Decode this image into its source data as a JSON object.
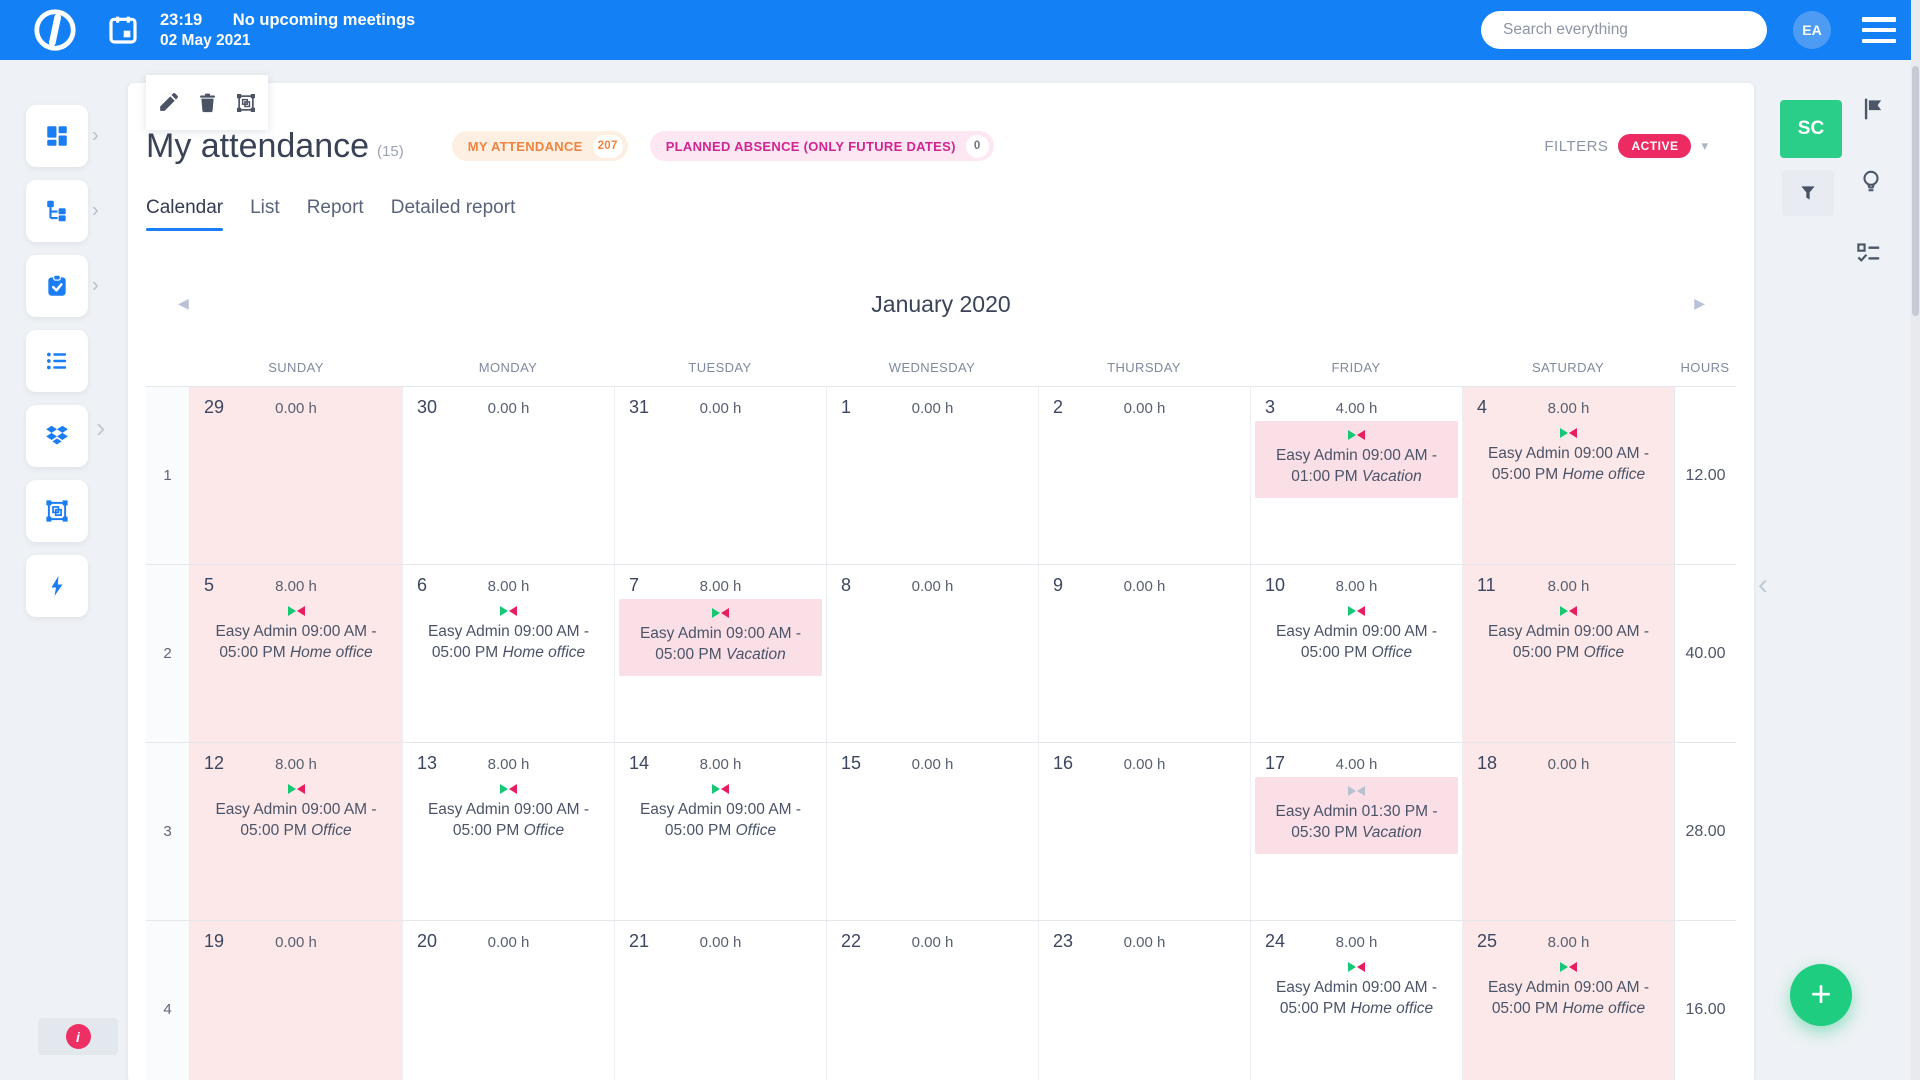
{
  "topbar": {
    "time": "23:19",
    "meeting_status": "No upcoming meetings",
    "date": "02 May 2021",
    "search_placeholder": "Search everything",
    "avatar_initials": "EA"
  },
  "icons": {
    "submenu_chevron": "›",
    "expand_sidebar": "›",
    "collapse_panel": "‹",
    "dropdown_caret": "▾",
    "nav_prev": "◀",
    "nav_next": "▶",
    "info": "i"
  },
  "sidebar": {
    "items": [
      {
        "icon": "dashboard-grid-icon",
        "has_submenu": true
      },
      {
        "icon": "project-tree-icon",
        "has_submenu": true
      },
      {
        "icon": "task-clipboard-icon",
        "has_submenu": true
      },
      {
        "icon": "list-icon",
        "has_submenu": false
      },
      {
        "icon": "dropbox-icon",
        "has_submenu": false
      },
      {
        "icon": "frame-objects-icon",
        "has_submenu": false
      },
      {
        "icon": "lightning-icon",
        "has_submenu": false
      }
    ]
  },
  "toolbar": {
    "buttons": [
      {
        "icon": "edit-pencil-icon"
      },
      {
        "icon": "delete-trash-icon"
      },
      {
        "icon": "frame-objects-icon"
      }
    ]
  },
  "header": {
    "title": "My attendance",
    "count": "(15)",
    "badges": [
      {
        "label": "MY ATTENDANCE",
        "count": "207",
        "theme": "orange"
      },
      {
        "label": "PLANNED ABSENCE (ONLY FUTURE DATES)",
        "count": "0",
        "theme": "pink"
      }
    ],
    "filters": {
      "label": "FILTERS",
      "state": "ACTIVE"
    }
  },
  "tabs": {
    "items": [
      {
        "label": "Calendar",
        "active": true
      },
      {
        "label": "List",
        "active": false
      },
      {
        "label": "Report",
        "active": false
      },
      {
        "label": "Detailed report",
        "active": false
      }
    ]
  },
  "calendar": {
    "month_title": "January 2020",
    "weekdays": [
      "SUNDAY",
      "MONDAY",
      "TUESDAY",
      "WEDNESDAY",
      "THURSDAY",
      "FRIDAY",
      "SATURDAY"
    ],
    "hours_header": "HOURS",
    "weeks": [
      {
        "week_number": "1",
        "total_hours": "12.00",
        "days": [
          {
            "day": "29",
            "hours": "0.00 h",
            "weekend": true
          },
          {
            "day": "30",
            "hours": "0.00 h",
            "weekend": false
          },
          {
            "day": "31",
            "hours": "0.00 h",
            "weekend": false
          },
          {
            "day": "1",
            "hours": "0.00 h",
            "weekend": false
          },
          {
            "day": "2",
            "hours": "0.00 h",
            "weekend": false
          },
          {
            "day": "3",
            "hours": "4.00 h",
            "weekend": false,
            "event": {
              "time": "Easy Admin 09:00 AM - 01:00 PM",
              "type": "Vacation",
              "boxed": true,
              "status": "approved"
            }
          },
          {
            "day": "4",
            "hours": "8.00 h",
            "weekend": true,
            "event": {
              "time": "Easy Admin 09:00 AM - 05:00 PM",
              "type": "Home office",
              "boxed": false,
              "status": "approved"
            }
          }
        ]
      },
      {
        "week_number": "2",
        "total_hours": "40.00",
        "days": [
          {
            "day": "5",
            "hours": "8.00 h",
            "weekend": true,
            "event": {
              "time": "Easy Admin 09:00 AM - 05:00 PM",
              "type": "Home office",
              "boxed": false,
              "status": "approved"
            }
          },
          {
            "day": "6",
            "hours": "8.00 h",
            "weekend": false,
            "event": {
              "time": "Easy Admin 09:00 AM - 05:00 PM",
              "type": "Home office",
              "boxed": false,
              "status": "approved"
            }
          },
          {
            "day": "7",
            "hours": "8.00 h",
            "weekend": false,
            "event": {
              "time": "Easy Admin 09:00 AM - 05:00 PM",
              "type": "Vacation",
              "boxed": true,
              "status": "approved"
            }
          },
          {
            "day": "8",
            "hours": "0.00 h",
            "weekend": false
          },
          {
            "day": "9",
            "hours": "0.00 h",
            "weekend": false
          },
          {
            "day": "10",
            "hours": "8.00 h",
            "weekend": false,
            "event": {
              "time": "Easy Admin 09:00 AM - 05:00 PM",
              "type": "Office",
              "boxed": false,
              "status": "approved"
            }
          },
          {
            "day": "11",
            "hours": "8.00 h",
            "weekend": true,
            "event": {
              "time": "Easy Admin 09:00 AM - 05:00 PM",
              "type": "Office",
              "boxed": false,
              "status": "approved"
            }
          }
        ]
      },
      {
        "week_number": "3",
        "total_hours": "28.00",
        "days": [
          {
            "day": "12",
            "hours": "8.00 h",
            "weekend": true,
            "event": {
              "time": "Easy Admin 09:00 AM - 05:00 PM",
              "type": "Office",
              "boxed": false,
              "status": "approved"
            }
          },
          {
            "day": "13",
            "hours": "8.00 h",
            "weekend": false,
            "event": {
              "time": "Easy Admin 09:00 AM - 05:00 PM",
              "type": "Office",
              "boxed": false,
              "status": "approved"
            }
          },
          {
            "day": "14",
            "hours": "8.00 h",
            "weekend": false,
            "event": {
              "time": "Easy Admin 09:00 AM - 05:00 PM",
              "type": "Office",
              "boxed": false,
              "status": "approved"
            }
          },
          {
            "day": "15",
            "hours": "0.00 h",
            "weekend": false
          },
          {
            "day": "16",
            "hours": "0.00 h",
            "weekend": false
          },
          {
            "day": "17",
            "hours": "4.00 h",
            "weekend": false,
            "event": {
              "time": "Easy Admin 01:30 PM - 05:30 PM",
              "type": "Vacation",
              "boxed": true,
              "status": "pending"
            }
          },
          {
            "day": "18",
            "hours": "0.00 h",
            "weekend": true
          }
        ]
      },
      {
        "week_number": "4",
        "total_hours": "16.00",
        "days": [
          {
            "day": "19",
            "hours": "0.00 h",
            "weekend": true
          },
          {
            "day": "20",
            "hours": "0.00 h",
            "weekend": false
          },
          {
            "day": "21",
            "hours": "0.00 h",
            "weekend": false
          },
          {
            "day": "22",
            "hours": "0.00 h",
            "weekend": false
          },
          {
            "day": "23",
            "hours": "0.00 h",
            "weekend": false
          },
          {
            "day": "24",
            "hours": "8.00 h",
            "weekend": false,
            "event": {
              "time": "Easy Admin 09:00 AM - 05:00 PM",
              "type": "Home office",
              "boxed": false,
              "status": "approved"
            }
          },
          {
            "day": "25",
            "hours": "8.00 h",
            "weekend": true,
            "event": {
              "time": "Easy Admin 09:00 AM - 05:00 PM",
              "type": "Home office",
              "boxed": false,
              "status": "approved"
            }
          }
        ]
      }
    ]
  },
  "right_panel": {
    "sc_label": "SC"
  },
  "fab": {
    "label": "+"
  },
  "colors": {
    "topbar_blue": "#1480f6",
    "accent_blue": "#1a7ff7",
    "badge_orange": "#ef8440",
    "badge_pink": "#d02691",
    "active_red": "#ee2a62",
    "weekend_pink": "#fce8e8",
    "event_box_pink": "#fadfe7",
    "marker_green": "#16c776",
    "marker_red": "#e61e5f",
    "marker_gray": "#b9c0d2",
    "green_button": "#2bce89",
    "fab_green": "#1fcd80"
  }
}
